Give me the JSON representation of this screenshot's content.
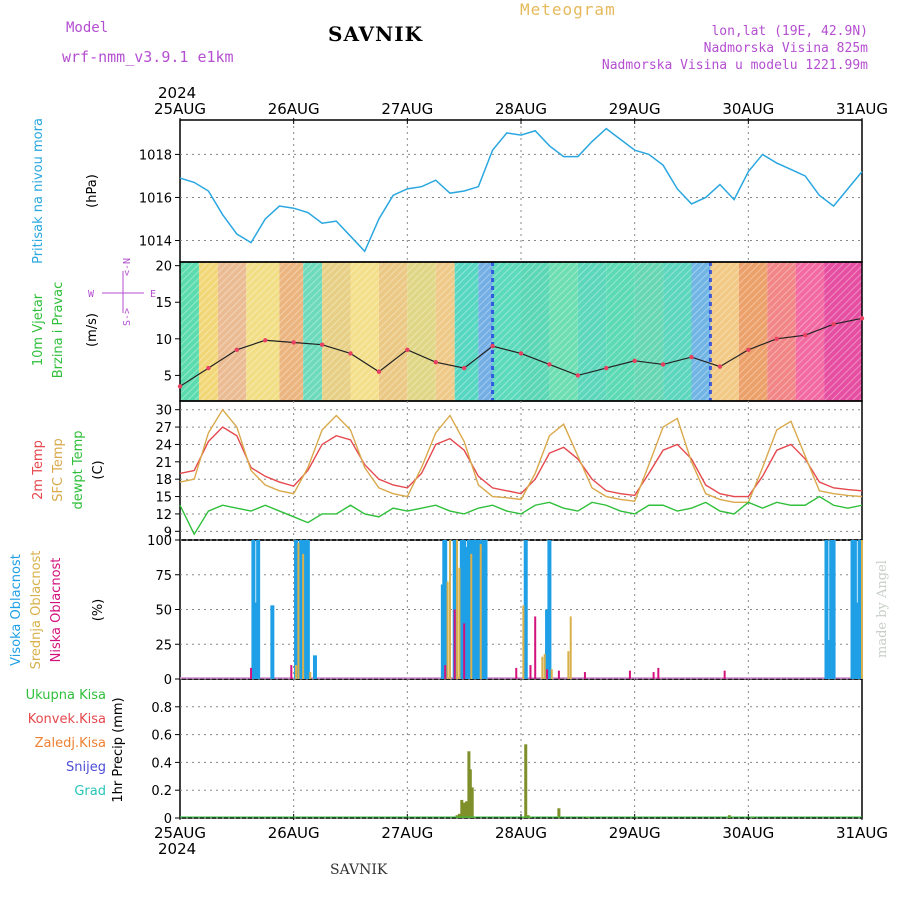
{
  "header": {
    "title": "SAVNIK",
    "model_label": "Model",
    "model_name": "wrf-nmm_v3.9.1 e1km",
    "meteogram": "Meteogram",
    "lonlat": "lon,lat (19E, 42.9N)",
    "elevation": "Nadmorska Visina 825m",
    "elevation_model": "Nadmorska Visina u modelu 1221.99m",
    "footer": "SAVNIK",
    "watermark": "made by Angel"
  },
  "colors": {
    "pressure": "#2aa7e0",
    "temp2m": "#e5484d",
    "sfc": "#d9a94c",
    "dew": "#2fbf3a",
    "high_cloud": "#1fa0e6",
    "mid_cloud": "#d9b14c",
    "low_cloud": "#d4127e",
    "total_precip": "#2fbf3a",
    "konv_precip": "#e5484d",
    "zaledj": "#f08030",
    "snow": "#4d4dd8",
    "grad": "#25c4b8",
    "precip_bar": "#7f8f2a"
  },
  "chart_data": [
    {
      "type": "line",
      "id": "pressure",
      "year": "2024",
      "x_labels": [
        "25AUG",
        "26AUG",
        "27AUG",
        "28AUG",
        "29AUG",
        "30AUG",
        "31AUG"
      ],
      "ylabel": "Pritisak na nivou mora",
      "unit": "(hPa)",
      "ylim": [
        1013,
        1019.6
      ],
      "yticks": [
        1014,
        1016,
        1018
      ],
      "grid": true,
      "hours": [
        0,
        3,
        6,
        9,
        12,
        15,
        18,
        21,
        24,
        27,
        30,
        33,
        36,
        39,
        42,
        45,
        48,
        51,
        54,
        57,
        60,
        63,
        66,
        69,
        72,
        75,
        78,
        81,
        84,
        87,
        90,
        93,
        96,
        99,
        102,
        105,
        108,
        111,
        114,
        117,
        120,
        123,
        126,
        129,
        132,
        135,
        138,
        141,
        144
      ],
      "values": [
        1016.9,
        1016.7,
        1016.3,
        1015.2,
        1014.3,
        1013.9,
        1015.0,
        1015.6,
        1015.5,
        1015.3,
        1014.8,
        1014.9,
        1014.2,
        1013.5,
        1015.0,
        1016.1,
        1016.4,
        1016.5,
        1016.8,
        1016.2,
        1016.3,
        1016.5,
        1018.2,
        1019.0,
        1018.9,
        1019.1,
        1018.4,
        1017.9,
        1017.9,
        1018.6,
        1019.2,
        1018.7,
        1018.2,
        1018.0,
        1017.5,
        1016.4,
        1015.7,
        1016.0,
        1016.6,
        1015.9,
        1017.2,
        1018.0,
        1017.6,
        1017.3,
        1017.0,
        1016.1,
        1015.6,
        1016.4,
        1017.2
      ]
    },
    {
      "type": "scatter",
      "id": "wind",
      "ylabel": "10m Vjetar Brzina i Pravac",
      "unit": "(m/s)",
      "compass": [
        "N",
        "S",
        "W",
        "E"
      ],
      "ylim": [
        1.5,
        20.5
      ],
      "yticks": [
        5,
        10,
        15,
        20
      ],
      "hours": [
        0,
        6,
        12,
        18,
        24,
        30,
        36,
        42,
        48,
        54,
        60,
        66,
        72,
        78,
        84,
        90,
        96,
        102,
        108,
        114,
        120,
        126,
        132,
        138,
        144
      ],
      "speed": [
        3.5,
        6.0,
        8.5,
        9.8,
        9.5,
        9.2,
        8.0,
        5.5,
        8.5,
        6.8,
        6.0,
        9.0,
        8.0,
        6.5,
        5.0,
        6.0,
        7.0,
        6.5,
        7.5,
        6.2,
        8.5,
        10.0,
        10.5,
        12.0,
        12.8
      ]
    },
    {
      "type": "line",
      "id": "temperature",
      "ylabel": [
        "2m Temp",
        "SFC Temp",
        "dewpt Temp"
      ],
      "unit": "(C)",
      "ylim": [
        7.5,
        31.5
      ],
      "yticks": [
        9,
        12,
        15,
        18,
        21,
        24,
        27,
        30
      ],
      "hours": [
        0,
        3,
        6,
        9,
        12,
        15,
        18,
        21,
        24,
        27,
        30,
        33,
        36,
        39,
        42,
        45,
        48,
        51,
        54,
        57,
        60,
        63,
        66,
        69,
        72,
        75,
        78,
        81,
        84,
        87,
        90,
        93,
        96,
        99,
        102,
        105,
        108,
        111,
        114,
        117,
        120,
        123,
        126,
        129,
        132,
        135,
        138,
        141,
        144
      ],
      "series": [
        {
          "name": "2m Temp",
          "values": [
            19.0,
            19.5,
            24.5,
            27.0,
            25.5,
            20.0,
            18.5,
            17.5,
            16.8,
            19.5,
            24.0,
            25.5,
            24.8,
            20.5,
            18.0,
            17.0,
            16.5,
            19.0,
            24.0,
            25.0,
            23.0,
            18.5,
            16.5,
            16.0,
            15.5,
            18.0,
            22.5,
            23.5,
            21.5,
            18.0,
            16.0,
            15.5,
            15.2,
            19.0,
            23.0,
            24.0,
            21.5,
            17.0,
            15.5,
            15.0,
            15.0,
            18.5,
            23.0,
            24.0,
            21.5,
            17.5,
            16.5,
            16.2,
            16.0
          ]
        },
        {
          "name": "SFC Temp",
          "values": [
            17.5,
            18.0,
            26.0,
            30.0,
            27.0,
            19.5,
            17.0,
            16.0,
            15.5,
            20.0,
            26.5,
            29.0,
            26.5,
            20.0,
            16.5,
            15.5,
            15.0,
            20.0,
            26.0,
            29.0,
            24.5,
            17.0,
            15.0,
            14.8,
            14.5,
            19.0,
            25.5,
            27.5,
            22.0,
            16.5,
            15.0,
            14.5,
            14.2,
            20.5,
            27.0,
            28.5,
            21.0,
            15.5,
            14.5,
            14.0,
            14.0,
            20.0,
            26.5,
            28.0,
            22.0,
            16.0,
            15.5,
            15.2,
            15.0
          ]
        },
        {
          "name": "dewpt Temp",
          "values": [
            13.5,
            8.5,
            12.5,
            13.5,
            13.0,
            12.5,
            13.5,
            12.5,
            11.5,
            10.5,
            12.0,
            12.0,
            13.5,
            12.0,
            11.5,
            13.0,
            12.5,
            13.0,
            13.5,
            12.5,
            12.0,
            13.0,
            13.5,
            12.5,
            12.0,
            13.5,
            14.0,
            13.0,
            12.5,
            14.0,
            13.5,
            12.5,
            12.0,
            13.5,
            13.5,
            12.5,
            13.0,
            14.0,
            12.5,
            12.0,
            14.0,
            13.0,
            14.0,
            13.5,
            13.5,
            15.0,
            13.5,
            13.0,
            13.5
          ]
        }
      ]
    },
    {
      "type": "bar",
      "id": "clouds",
      "ylabel": [
        "Visoka Oblacnost",
        "Srednja Oblacnost",
        "Niska Oblacnost"
      ],
      "unit": "(%)",
      "ylim": [
        0,
        100
      ],
      "yticks": [
        0,
        25,
        50,
        75,
        100
      ],
      "series": [
        {
          "name": "Visoka Oblacnost",
          "hours": [
            15.5,
            16,
            16.5,
            19.5,
            24.5,
            25.5,
            26,
            26.5,
            27,
            28.5,
            55.5,
            55.8,
            56,
            58,
            59.5,
            60,
            60.5,
            61,
            61.5,
            62,
            62.5,
            63,
            63.5,
            64,
            64.5,
            73,
            77.5,
            78,
            136.5,
            137,
            137.5,
            138,
            142,
            142.5,
            143,
            143.5
          ],
          "values": [
            100,
            55,
            100,
            53,
            100,
            100,
            100,
            100,
            100,
            17,
            68,
            100,
            100,
            100,
            100,
            100,
            95,
            100,
            100,
            100,
            100,
            100,
            100,
            100,
            100,
            100,
            50,
            100,
            100,
            28,
            100,
            100,
            100,
            100,
            55,
            100
          ]
        },
        {
          "name": "Srednja Oblacnost",
          "hours": [
            24.5,
            25,
            26,
            27.5,
            56.5,
            57,
            58.5,
            59,
            61.5,
            63.5,
            72.5,
            76.5,
            77,
            78.5,
            82,
            82.5,
            144
          ],
          "values": [
            10,
            98,
            90,
            5,
            70,
            100,
            100,
            80,
            90,
            97,
            53,
            16,
            18,
            7,
            20,
            45,
            100
          ]
        },
        {
          "name": "Niska Oblacnost",
          "hours": [
            15,
            23.5,
            56,
            58,
            60,
            71,
            74,
            75,
            77.5,
            80,
            85.5,
            95,
            100,
            101,
            115
          ],
          "values": [
            8,
            10,
            10,
            50,
            40,
            8,
            10,
            45,
            7,
            6,
            5,
            6,
            5,
            8,
            6
          ]
        }
      ]
    },
    {
      "type": "bar",
      "id": "precip",
      "legend": [
        "Ukupna Kisa",
        "Konvek.Kisa",
        "Zaledj.Kisa",
        "Snijeg",
        "Grad"
      ],
      "ylabel": "1hr Precip",
      "unit": "(mm)",
      "ylim": [
        0,
        1.0
      ],
      "yticks": [
        0,
        0.2,
        0.4,
        0.6,
        0.8
      ],
      "series": [
        {
          "name": "Ukupna Kisa",
          "hours": [
            58.5,
            59.0,
            59.5,
            60.0,
            60.5,
            61.0,
            61.3,
            61.7,
            62.0,
            72.5,
            73.0,
            73.5,
            74.0,
            80.0,
            86.0,
            116.0,
            121.0
          ],
          "values": [
            0.02,
            0.03,
            0.13,
            0.11,
            0.12,
            0.48,
            0.35,
            0.22,
            0.01,
            0.01,
            0.53,
            0.02,
            0.01,
            0.07,
            0.01,
            0.02,
            0.01
          ]
        }
      ]
    }
  ]
}
